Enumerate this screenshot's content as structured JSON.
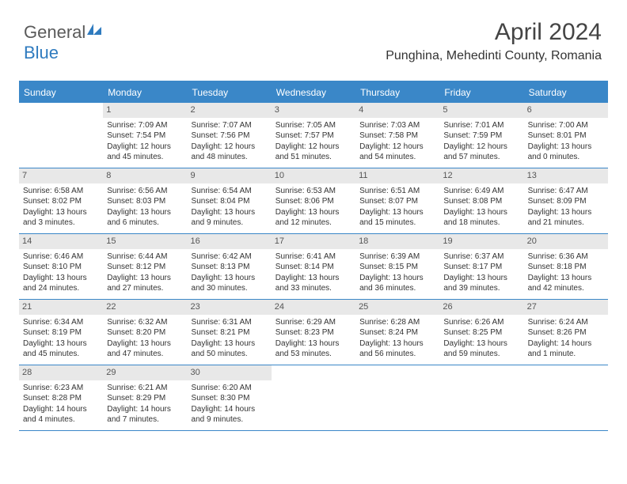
{
  "brand": {
    "part1": "General",
    "part2": "Blue"
  },
  "header": {
    "month": "April 2024",
    "location": "Punghina, Mehedinti County, Romania"
  },
  "columns": [
    "Sunday",
    "Monday",
    "Tuesday",
    "Wednesday",
    "Thursday",
    "Friday",
    "Saturday"
  ],
  "colors": {
    "accent": "#3a87c8",
    "daynum_bg": "#e8e8e8",
    "text": "#333333"
  },
  "weeks": [
    [
      {
        "num": "",
        "l1": "",
        "l2": "",
        "l3": "",
        "l4": ""
      },
      {
        "num": "1",
        "l1": "Sunrise: 7:09 AM",
        "l2": "Sunset: 7:54 PM",
        "l3": "Daylight: 12 hours",
        "l4": "and 45 minutes."
      },
      {
        "num": "2",
        "l1": "Sunrise: 7:07 AM",
        "l2": "Sunset: 7:56 PM",
        "l3": "Daylight: 12 hours",
        "l4": "and 48 minutes."
      },
      {
        "num": "3",
        "l1": "Sunrise: 7:05 AM",
        "l2": "Sunset: 7:57 PM",
        "l3": "Daylight: 12 hours",
        "l4": "and 51 minutes."
      },
      {
        "num": "4",
        "l1": "Sunrise: 7:03 AM",
        "l2": "Sunset: 7:58 PM",
        "l3": "Daylight: 12 hours",
        "l4": "and 54 minutes."
      },
      {
        "num": "5",
        "l1": "Sunrise: 7:01 AM",
        "l2": "Sunset: 7:59 PM",
        "l3": "Daylight: 12 hours",
        "l4": "and 57 minutes."
      },
      {
        "num": "6",
        "l1": "Sunrise: 7:00 AM",
        "l2": "Sunset: 8:01 PM",
        "l3": "Daylight: 13 hours",
        "l4": "and 0 minutes."
      }
    ],
    [
      {
        "num": "7",
        "l1": "Sunrise: 6:58 AM",
        "l2": "Sunset: 8:02 PM",
        "l3": "Daylight: 13 hours",
        "l4": "and 3 minutes."
      },
      {
        "num": "8",
        "l1": "Sunrise: 6:56 AM",
        "l2": "Sunset: 8:03 PM",
        "l3": "Daylight: 13 hours",
        "l4": "and 6 minutes."
      },
      {
        "num": "9",
        "l1": "Sunrise: 6:54 AM",
        "l2": "Sunset: 8:04 PM",
        "l3": "Daylight: 13 hours",
        "l4": "and 9 minutes."
      },
      {
        "num": "10",
        "l1": "Sunrise: 6:53 AM",
        "l2": "Sunset: 8:06 PM",
        "l3": "Daylight: 13 hours",
        "l4": "and 12 minutes."
      },
      {
        "num": "11",
        "l1": "Sunrise: 6:51 AM",
        "l2": "Sunset: 8:07 PM",
        "l3": "Daylight: 13 hours",
        "l4": "and 15 minutes."
      },
      {
        "num": "12",
        "l1": "Sunrise: 6:49 AM",
        "l2": "Sunset: 8:08 PM",
        "l3": "Daylight: 13 hours",
        "l4": "and 18 minutes."
      },
      {
        "num": "13",
        "l1": "Sunrise: 6:47 AM",
        "l2": "Sunset: 8:09 PM",
        "l3": "Daylight: 13 hours",
        "l4": "and 21 minutes."
      }
    ],
    [
      {
        "num": "14",
        "l1": "Sunrise: 6:46 AM",
        "l2": "Sunset: 8:10 PM",
        "l3": "Daylight: 13 hours",
        "l4": "and 24 minutes."
      },
      {
        "num": "15",
        "l1": "Sunrise: 6:44 AM",
        "l2": "Sunset: 8:12 PM",
        "l3": "Daylight: 13 hours",
        "l4": "and 27 minutes."
      },
      {
        "num": "16",
        "l1": "Sunrise: 6:42 AM",
        "l2": "Sunset: 8:13 PM",
        "l3": "Daylight: 13 hours",
        "l4": "and 30 minutes."
      },
      {
        "num": "17",
        "l1": "Sunrise: 6:41 AM",
        "l2": "Sunset: 8:14 PM",
        "l3": "Daylight: 13 hours",
        "l4": "and 33 minutes."
      },
      {
        "num": "18",
        "l1": "Sunrise: 6:39 AM",
        "l2": "Sunset: 8:15 PM",
        "l3": "Daylight: 13 hours",
        "l4": "and 36 minutes."
      },
      {
        "num": "19",
        "l1": "Sunrise: 6:37 AM",
        "l2": "Sunset: 8:17 PM",
        "l3": "Daylight: 13 hours",
        "l4": "and 39 minutes."
      },
      {
        "num": "20",
        "l1": "Sunrise: 6:36 AM",
        "l2": "Sunset: 8:18 PM",
        "l3": "Daylight: 13 hours",
        "l4": "and 42 minutes."
      }
    ],
    [
      {
        "num": "21",
        "l1": "Sunrise: 6:34 AM",
        "l2": "Sunset: 8:19 PM",
        "l3": "Daylight: 13 hours",
        "l4": "and 45 minutes."
      },
      {
        "num": "22",
        "l1": "Sunrise: 6:32 AM",
        "l2": "Sunset: 8:20 PM",
        "l3": "Daylight: 13 hours",
        "l4": "and 47 minutes."
      },
      {
        "num": "23",
        "l1": "Sunrise: 6:31 AM",
        "l2": "Sunset: 8:21 PM",
        "l3": "Daylight: 13 hours",
        "l4": "and 50 minutes."
      },
      {
        "num": "24",
        "l1": "Sunrise: 6:29 AM",
        "l2": "Sunset: 8:23 PM",
        "l3": "Daylight: 13 hours",
        "l4": "and 53 minutes."
      },
      {
        "num": "25",
        "l1": "Sunrise: 6:28 AM",
        "l2": "Sunset: 8:24 PM",
        "l3": "Daylight: 13 hours",
        "l4": "and 56 minutes."
      },
      {
        "num": "26",
        "l1": "Sunrise: 6:26 AM",
        "l2": "Sunset: 8:25 PM",
        "l3": "Daylight: 13 hours",
        "l4": "and 59 minutes."
      },
      {
        "num": "27",
        "l1": "Sunrise: 6:24 AM",
        "l2": "Sunset: 8:26 PM",
        "l3": "Daylight: 14 hours",
        "l4": "and 1 minute."
      }
    ],
    [
      {
        "num": "28",
        "l1": "Sunrise: 6:23 AM",
        "l2": "Sunset: 8:28 PM",
        "l3": "Daylight: 14 hours",
        "l4": "and 4 minutes."
      },
      {
        "num": "29",
        "l1": "Sunrise: 6:21 AM",
        "l2": "Sunset: 8:29 PM",
        "l3": "Daylight: 14 hours",
        "l4": "and 7 minutes."
      },
      {
        "num": "30",
        "l1": "Sunrise: 6:20 AM",
        "l2": "Sunset: 8:30 PM",
        "l3": "Daylight: 14 hours",
        "l4": "and 9 minutes."
      },
      {
        "num": "",
        "l1": "",
        "l2": "",
        "l3": "",
        "l4": ""
      },
      {
        "num": "",
        "l1": "",
        "l2": "",
        "l3": "",
        "l4": ""
      },
      {
        "num": "",
        "l1": "",
        "l2": "",
        "l3": "",
        "l4": ""
      },
      {
        "num": "",
        "l1": "",
        "l2": "",
        "l3": "",
        "l4": ""
      }
    ]
  ]
}
